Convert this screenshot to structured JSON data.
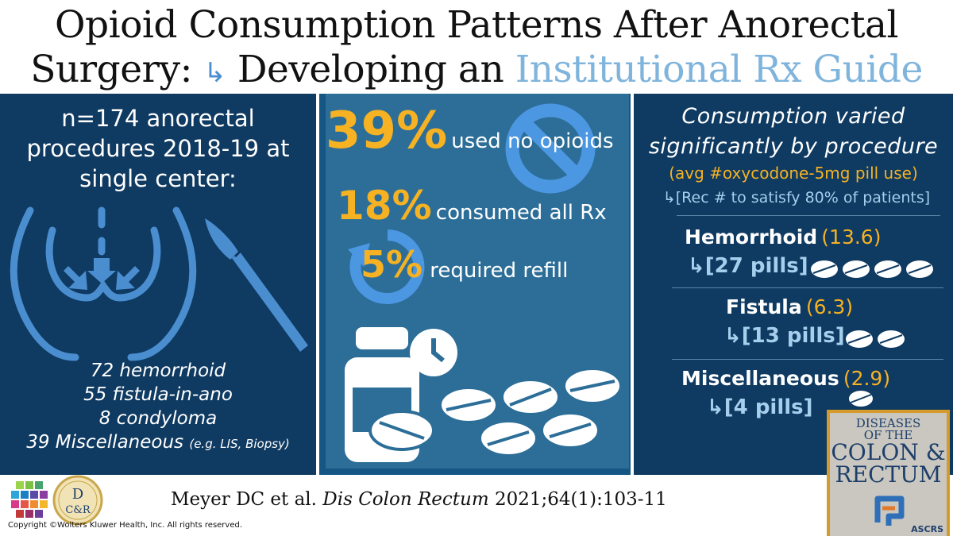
{
  "header": {
    "title_line1": "Opioid Consumption Patterns After Anorectal",
    "title_line2_a": "Surgery:",
    "title_line2_arrow": "↳",
    "title_line2_b": "Developing an",
    "title_line2_accent": "Institutional Rx Guide"
  },
  "left": {
    "intro": [
      "n=174 anorectal",
      "procedures 2018-19 at",
      "single center:"
    ],
    "list": [
      {
        "text": "72 hemorrhoid"
      },
      {
        "text": "55 fistula-in-ano"
      },
      {
        "text": "8 condyloma"
      },
      {
        "text": "39  Miscellaneous",
        "note": "(e.g. LIS, Biopsy)"
      }
    ]
  },
  "middle": {
    "stat1": {
      "value": "39%",
      "label": "used no opioids"
    },
    "stat2": {
      "value": "18%",
      "label": "consumed all Rx"
    },
    "stat3": {
      "value": "5%",
      "label": "required refill"
    }
  },
  "right": {
    "heading_line1": "Consumption varied",
    "heading_line2": "significantly by procedure",
    "subheading": "(avg #oxycodone-5mg pill use)",
    "rec_arrow": "↳",
    "rec": "[Rec # to satisfy 80% of patients]",
    "procedures": [
      {
        "name": "Hemorrhoid",
        "avg": "(13.6)",
        "arrow": "↳",
        "pills": "[27 pills]",
        "icons": 4
      },
      {
        "name": "Fistula",
        "avg": "(6.3)",
        "arrow": "↳",
        "pills": "[13 pills]",
        "icons": 2
      },
      {
        "name": "Miscellaneous",
        "avg": "(2.9)",
        "arrow": "↳",
        "pills": "[4 pills]",
        "icons": 1
      }
    ]
  },
  "footer": {
    "citation_a": "Meyer DC et al.",
    "citation_journal": "Dis Colon Rectum",
    "citation_b": "2021;64(1):103-11",
    "copyright": "Copyright ©Wolters Kluwer Health, Inc. All rights reserved."
  },
  "cover": {
    "line1": "DISEASES",
    "line2": "OF THE",
    "line3": "COLON &",
    "line4": "RECTUM",
    "org": "ASCRS"
  },
  "logo_dcr": {
    "top": "D",
    "bottom": "C&R"
  },
  "colors": {
    "navy": "#0f3a61",
    "mid": "#2c6e98",
    "gold": "#f6b223",
    "light_blue": "#a6cfee",
    "accent": "#7fb4dc"
  }
}
